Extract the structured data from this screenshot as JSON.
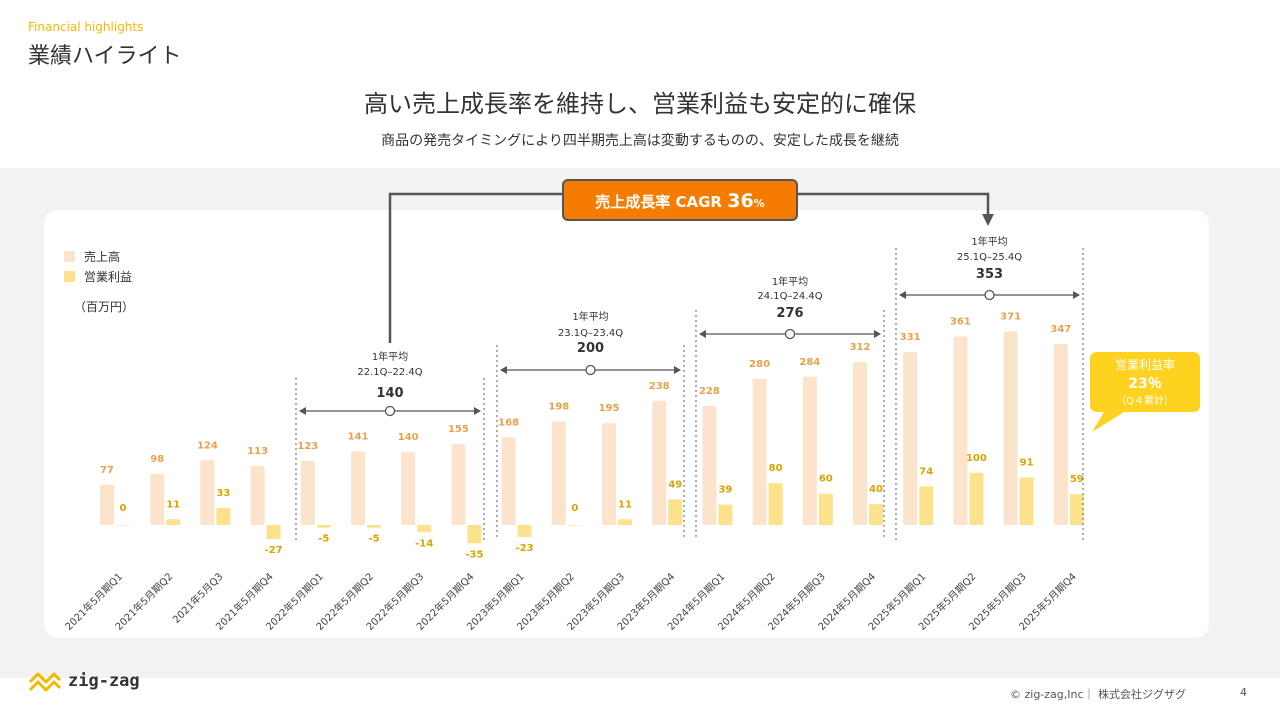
{
  "header": {
    "eyebrow": "Financial highlights",
    "title": "業績ハイライト",
    "headline": "高い売上成長率を維持し、営業利益も安定的に確保",
    "subline": "商品の発売タイミングにより四半期売上高は変動するものの、安定した成長を継続"
  },
  "colors": {
    "sales": "#fce4cc",
    "profit": "#fde28e",
    "sales_label": "#e8a24e",
    "profit_label": "#d9a400",
    "cagr_box": "#f57c00",
    "callout": "#ffd21f",
    "accent_text": "#f5b800"
  },
  "cagr": {
    "label": "売上成長率 CAGR",
    "value": "36",
    "unit": "%"
  },
  "callout": {
    "line1": "営業利益率",
    "line2": "23％",
    "line3": "（Q４累計）"
  },
  "chart_data": {
    "type": "bar",
    "unit": "（百万円）",
    "categories": [
      "2021年5月期Q1",
      "2021年5月期Q2",
      "2021年5月Q3",
      "2021年5月期Q4",
      "2022年5月期Q1",
      "2022年5月期Q2",
      "2022年5月期Q3",
      "2022年5月期Q4",
      "2023年5月期Q1",
      "2023年5月期Q2",
      "2023年5月期Q3",
      "2023年5月期Q4",
      "2024年5月期Q1",
      "2024年5月期Q2",
      "2024年5月期Q3",
      "2024年5月期Q4",
      "2025年5月期Q1",
      "2025年5月期Q2",
      "2025年5月期Q3",
      "2025年5月期Q4"
    ],
    "series": [
      {
        "name": "売上高",
        "values": [
          77,
          98,
          124,
          113,
          123,
          141,
          140,
          155,
          168,
          198,
          195,
          238,
          228,
          280,
          284,
          312,
          331,
          361,
          371,
          347
        ]
      },
      {
        "name": "営業利益",
        "values": [
          0,
          11,
          33,
          -27,
          -5,
          -5,
          -14,
          -35,
          -23,
          0,
          11,
          49,
          39,
          80,
          60,
          40,
          74,
          100,
          91,
          59
        ]
      }
    ],
    "annual_averages": [
      {
        "label": "1年平均",
        "period": "22.1Q–22.4Q",
        "value": 140
      },
      {
        "label": "1年平均",
        "period": "23.1Q–23.4Q",
        "value": 200
      },
      {
        "label": "1年平均",
        "period": "24.1Q–24.4Q",
        "value": 276
      },
      {
        "label": "1年平均",
        "period": "25.1Q–25.4Q",
        "value": 353
      }
    ]
  },
  "footer": {
    "logo": "zig-zag",
    "copyright": "© zig-zag,Inc｜ 株式会社ジグザグ",
    "page": "4"
  }
}
